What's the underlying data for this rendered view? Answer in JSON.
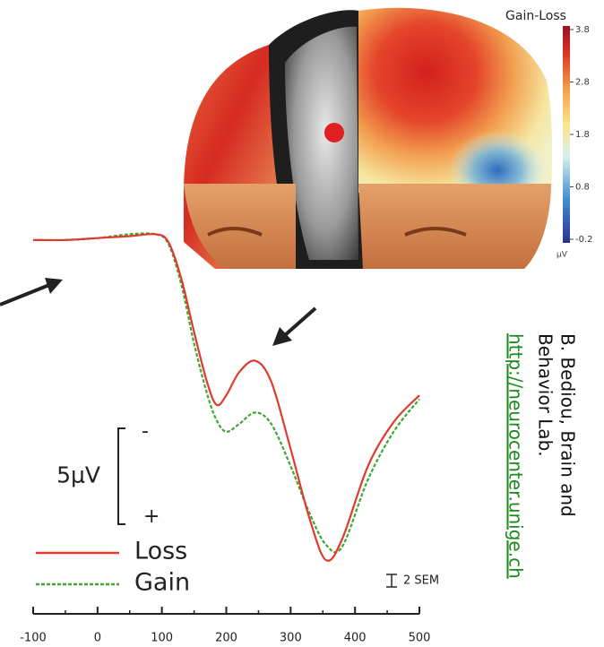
{
  "chart_data": {
    "type": "line",
    "x": [
      -100,
      -50,
      0,
      50,
      90,
      110,
      130,
      150,
      170,
      185,
      200,
      220,
      245,
      270,
      300,
      330,
      355,
      380,
      420,
      460,
      500
    ],
    "series": [
      {
        "name": "Loss",
        "color": "#e03a2e",
        "dash": false,
        "values": [
          0,
          0,
          -0.1,
          -0.2,
          -0.3,
          0.1,
          2.0,
          4.8,
          7.4,
          8.6,
          8.1,
          6.9,
          6.3,
          7.4,
          10.9,
          14.6,
          16.7,
          15.6,
          11.8,
          9.5,
          8.1
        ]
      },
      {
        "name": "Gain",
        "color": "#3fa535",
        "dash": true,
        "values": [
          0,
          0,
          -0.1,
          -0.3,
          -0.3,
          0.2,
          2.3,
          5.4,
          8.0,
          9.4,
          10.0,
          9.6,
          9.0,
          9.6,
          11.8,
          14.3,
          15.9,
          16.0,
          12.5,
          10.0,
          8.3
        ]
      }
    ],
    "xlim": [
      -100,
      500
    ],
    "xticks": [
      -100,
      0,
      100,
      200,
      300,
      400,
      500
    ],
    "xminorticks": [
      -50,
      50,
      150,
      250,
      350,
      450
    ],
    "ylim": [
      19.5,
      -1.3
    ],
    "scale_bar": {
      "value": 5,
      "label": "5μV",
      "top": "-",
      "bottom": "+"
    },
    "sem_label": "2 SEM"
  },
  "figure": {
    "colorbar": {
      "title": "Gain-Loss",
      "lim": [
        -0.2,
        3.8
      ],
      "ticks": [
        3.8,
        2.8,
        1.8,
        0.8,
        -0.2
      ],
      "unit": "μV"
    },
    "credit": {
      "lines": [
        "B. Bediou, Brain and",
        "Behavior Lab."
      ],
      "link": "http://neurocenter.unige.ch"
    }
  }
}
